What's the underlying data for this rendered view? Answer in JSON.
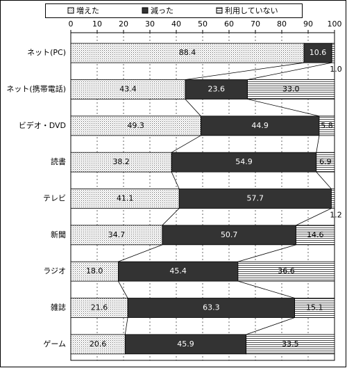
{
  "chart_data": {
    "type": "stacked-bar-horizontal",
    "categories": [
      "ネット(PC)",
      "ネット(携帯電話)",
      "ビデオ・DVD",
      "読書",
      "テレビ",
      "新聞",
      "ラジオ",
      "雑誌",
      "ゲーム"
    ],
    "series": [
      {
        "name": "増えた",
        "color": "#ffffff",
        "pattern": "dots",
        "values": [
          88.4,
          43.4,
          49.3,
          38.2,
          41.1,
          34.7,
          18.0,
          21.6,
          20.6
        ],
        "value_labels": [
          "88.4",
          "43.4",
          "49.3",
          "38.2",
          "41.1",
          "34.7",
          "18.0",
          "21.6",
          "20.6"
        ]
      },
      {
        "name": "減った",
        "color": "#333333",
        "pattern": "solid",
        "values": [
          10.6,
          23.6,
          44.9,
          54.9,
          57.7,
          50.7,
          45.4,
          63.3,
          45.9
        ]
      },
      {
        "name": "利用していない",
        "color": "#ffffff",
        "pattern": "hlines",
        "values": [
          1.0,
          33.0,
          5.8,
          6.9,
          1.2,
          14.6,
          36.6,
          15.1,
          33.5
        ],
        "value_labels": [
          "1.0",
          "33.0",
          "5.8",
          "6.9",
          "1.2",
          "14.6",
          "36.6",
          "15.1",
          "33.5"
        ]
      }
    ],
    "xlim": [
      0,
      100
    ],
    "xticks": [
      0,
      10,
      20,
      30,
      40,
      50,
      60,
      70,
      80,
      90,
      100
    ],
    "grid": true,
    "legend": "top",
    "series_lines": true
  }
}
